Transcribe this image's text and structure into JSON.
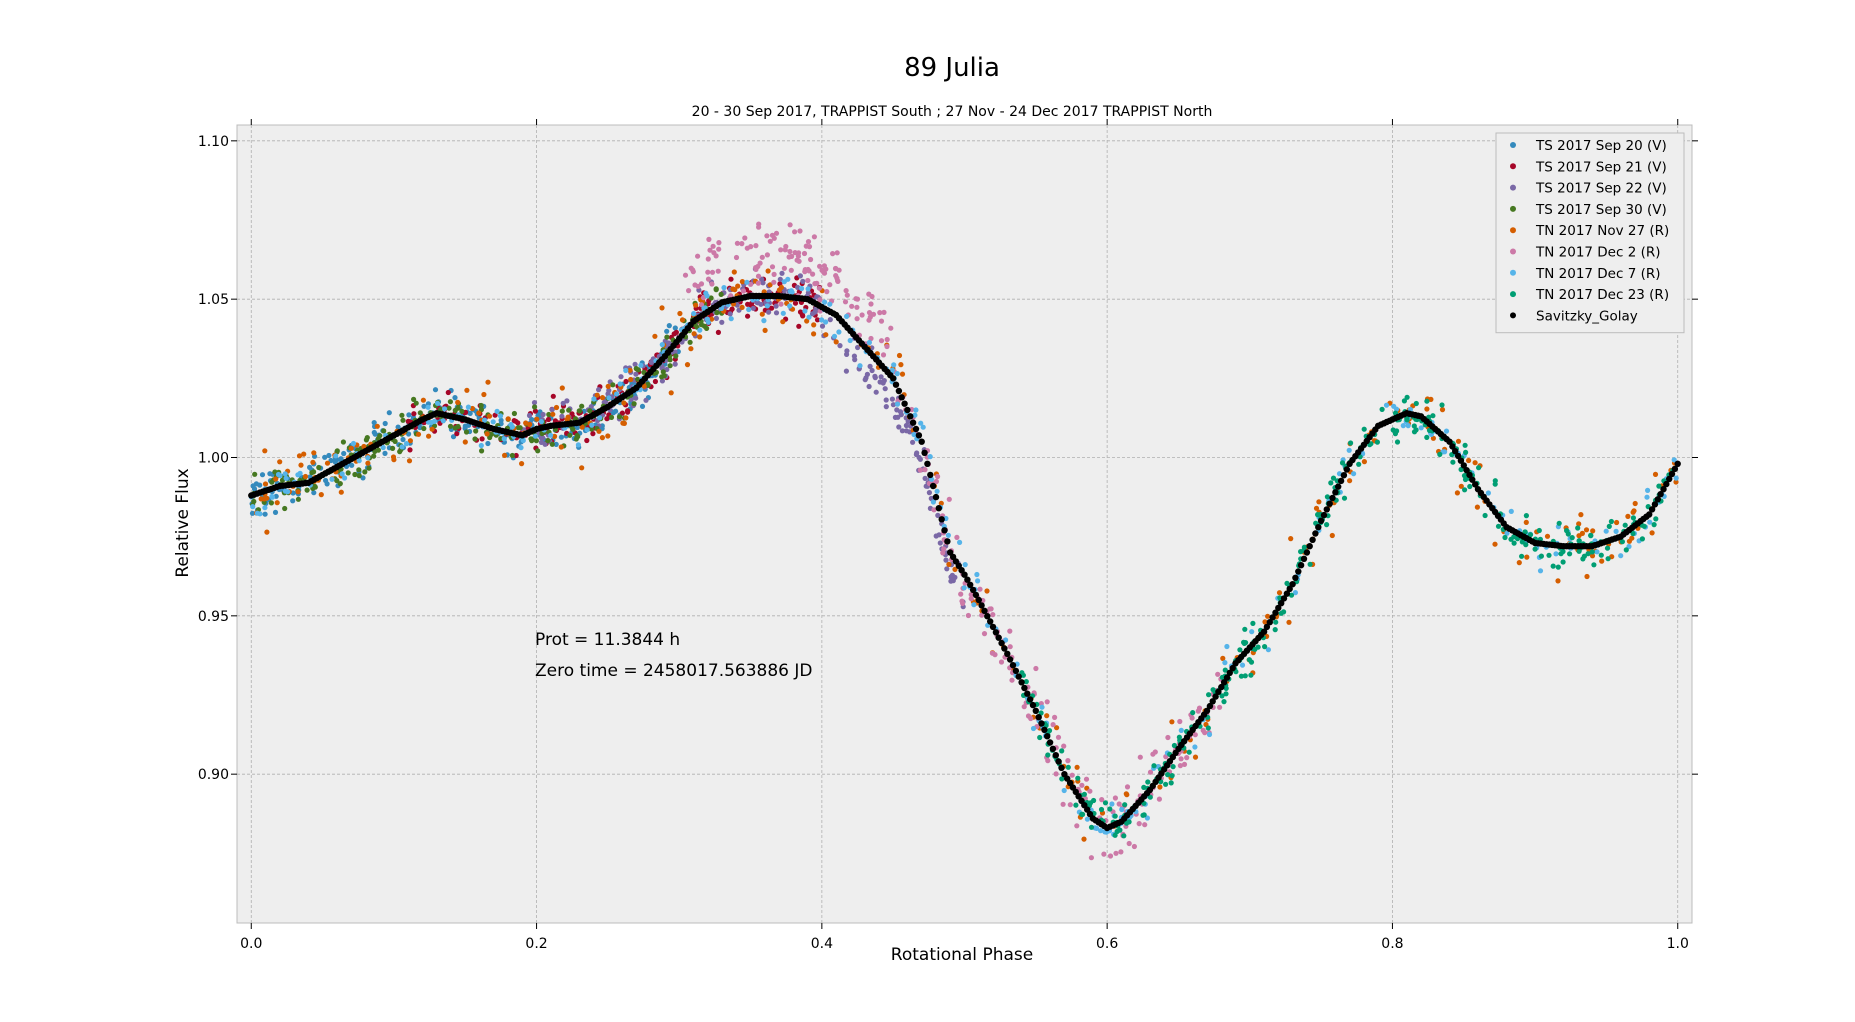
{
  "chart_data": {
    "type": "scatter",
    "title": "89 Julia",
    "subtitle": "20 - 30 Sep 2017, TRAPPIST South ; 27 Nov - 24 Dec 2017 TRAPPIST North",
    "xlabel": "Rotational Phase",
    "ylabel": "Relative   Flux",
    "xlim": [
      -0.01,
      1.01
    ],
    "ylim": [
      0.853,
      1.105
    ],
    "xticks": [
      0.0,
      0.2,
      0.4,
      0.6,
      0.8,
      1.0
    ],
    "xtick_labels": [
      "0.0",
      "0.2",
      "0.4",
      "0.6",
      "0.8",
      "1.0"
    ],
    "yticks": [
      0.9,
      0.95,
      1.0,
      1.05,
      1.1
    ],
    "ytick_labels": [
      "0.90",
      "0.95",
      "1.00",
      "1.05",
      "1.10"
    ],
    "grid": true,
    "legend_position": "top-right",
    "annotations": [
      "Prot = 11.3844 h",
      "Zero time = 2458017.563886 JD"
    ],
    "series": [
      {
        "name": "TS 2017 Sep 20  (V)",
        "color": "#348ABD",
        "x_range": [
          0.0,
          0.3
        ],
        "approx_points": 260
      },
      {
        "name": "TS 2017 Sep 21  (V)",
        "color": "#A60628",
        "x_range": [
          0.11,
          0.4
        ],
        "approx_points": 220
      },
      {
        "name": "TS 2017 Sep 22  (V)",
        "color": "#7A68A6",
        "x_range": [
          0.19,
          0.5
        ],
        "approx_points": 260
      },
      {
        "name": "TS 2017 Sep 30  (V)",
        "color": "#467821",
        "x_range": [
          0.0,
          0.33
        ],
        "approx_points": 240
      },
      {
        "name": "TN 2017 Nov 27  (R)",
        "color": "#D55E00",
        "x_range": [
          0.0,
          1.0
        ],
        "approx_points": 320
      },
      {
        "name": "TN 2017 Dec 2  (R)",
        "color": "#CC79A7",
        "x_range": [
          0.3,
          0.68
        ],
        "approx_points": 300
      },
      {
        "name": "TN 2017 Dec 7  (R)",
        "color": "#56B4E9",
        "x_range": [
          0.0,
          1.0
        ],
        "approx_points": 320
      },
      {
        "name": "TN 2017 Dec 23  (R)",
        "color": "#009E73",
        "x_range": [
          0.54,
          1.0
        ],
        "approx_points": 320
      },
      {
        "name": "Savitzky_Golay",
        "color": "#000000",
        "type": "line-points",
        "x": [
          0.0,
          0.02,
          0.04,
          0.06,
          0.08,
          0.1,
          0.12,
          0.13,
          0.15,
          0.17,
          0.19,
          0.2,
          0.21,
          0.23,
          0.25,
          0.27,
          0.29,
          0.31,
          0.33,
          0.35,
          0.37,
          0.39,
          0.41,
          0.43,
          0.45,
          0.47,
          0.49,
          0.5,
          0.51,
          0.53,
          0.55,
          0.57,
          0.59,
          0.6,
          0.61,
          0.63,
          0.65,
          0.67,
          0.69,
          0.71,
          0.73,
          0.75,
          0.77,
          0.79,
          0.81,
          0.82,
          0.84,
          0.86,
          0.88,
          0.9,
          0.92,
          0.94,
          0.96,
          0.98,
          1.0
        ],
        "y": [
          0.988,
          0.991,
          0.992,
          0.997,
          1.002,
          1.007,
          1.012,
          1.014,
          1.012,
          1.009,
          1.007,
          1.009,
          1.01,
          1.011,
          1.016,
          1.022,
          1.032,
          1.043,
          1.049,
          1.051,
          1.051,
          1.05,
          1.045,
          1.035,
          1.025,
          1.005,
          0.97,
          0.963,
          0.955,
          0.938,
          0.92,
          0.9,
          0.886,
          0.883,
          0.885,
          0.895,
          0.908,
          0.92,
          0.935,
          0.945,
          0.96,
          0.98,
          0.998,
          1.01,
          1.014,
          1.013,
          1.005,
          0.99,
          0.978,
          0.973,
          0.972,
          0.972,
          0.975,
          0.982,
          0.998
        ]
      }
    ]
  }
}
